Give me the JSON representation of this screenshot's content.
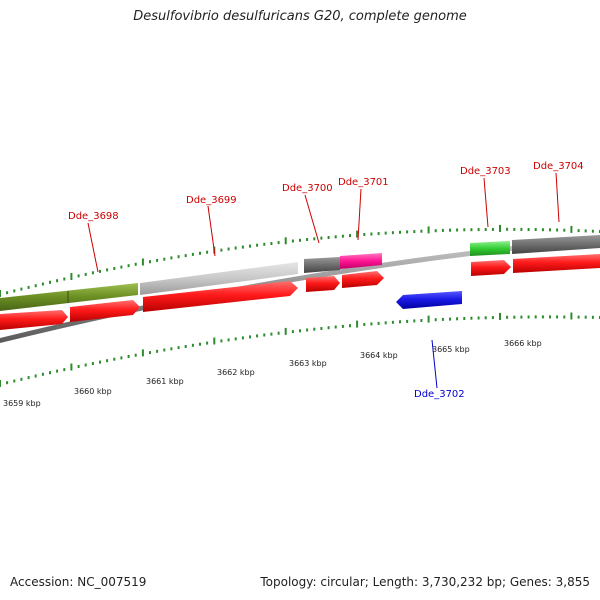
{
  "title": "Desulfovibrio desulfuricans G20, complete genome",
  "footer": {
    "accession": "Accession: NC_007519",
    "stats": "Topology: circular; Length: 3,730,232 bp; Genes: 3,855"
  },
  "colors": {
    "forward_cds": "#ff1a1a",
    "reverse_cds": "#1a1ae6",
    "tick": "#2e8b2e",
    "backbone": "#8c8c8c",
    "label_forward": "#cc0000",
    "label_reverse": "#0000cc"
  },
  "scale": {
    "unit": "kbp",
    "labels": [
      "3659 kbp",
      "3660 kbp",
      "3661 kbp",
      "3662 kbp",
      "3663 kbp",
      "3664 kbp",
      "3665 kbp",
      "3666 kbp"
    ]
  },
  "genes": [
    {
      "id": "Dde_3698",
      "strand": "forward"
    },
    {
      "id": "Dde_3699",
      "strand": "forward"
    },
    {
      "id": "Dde_3700",
      "strand": "forward"
    },
    {
      "id": "Dde_3701",
      "strand": "forward"
    },
    {
      "id": "Dde_3702",
      "strand": "reverse"
    },
    {
      "id": "Dde_3703",
      "strand": "forward"
    },
    {
      "id": "Dde_3704",
      "strand": "forward"
    }
  ],
  "feature_colors": {
    "olive": "#6b8e23",
    "light_gray": "#c8c8c8",
    "dark_gray": "#6e6e6e",
    "magenta": "#ff1493",
    "green": "#32cd32"
  }
}
